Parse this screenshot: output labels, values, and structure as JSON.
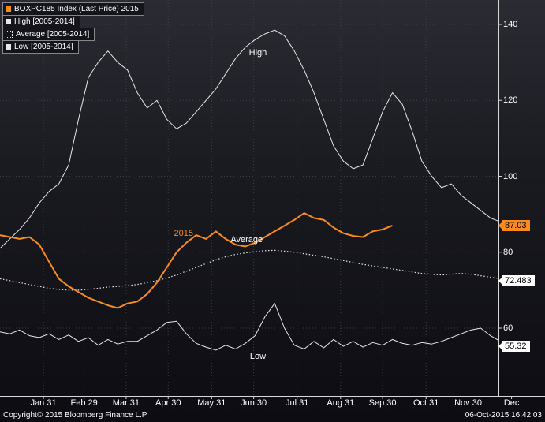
{
  "legend": {
    "items": [
      {
        "label": "BOXPC185 Index (Last Price) 2015",
        "swatch": "#fb8b1e",
        "swatch_style": "solid"
      },
      {
        "label": "High [2005-2014]",
        "swatch": "#e8e8e8",
        "swatch_style": "solid"
      },
      {
        "label": "Average [2005-2014]",
        "swatch": "#e8e8e8",
        "swatch_style": "dotted"
      },
      {
        "label": "Low [2005-2014]",
        "swatch": "#e8e8e8",
        "swatch_style": "solid"
      }
    ]
  },
  "footer": {
    "left": "Copyright© 2015 Bloomberg Finance L.P.",
    "right": "06-Oct-2015 16:42:03"
  },
  "chart_data": {
    "type": "line",
    "title": "",
    "xlabel": "",
    "ylabel": "",
    "grid": true,
    "legend_position": "top-left",
    "colors": {
      "accent_orange": "#fb8b1e",
      "line_white": "#e8e8e8",
      "background": "#15151c"
    },
    "x_axis": {
      "unit": "day-of-year",
      "range": [
        0,
        365
      ],
      "tick_labels": [
        {
          "label": "Jan 31",
          "day": 31
        },
        {
          "label": "Feb 29",
          "day": 60
        },
        {
          "label": "Mar 31",
          "day": 90
        },
        {
          "label": "Apr 30",
          "day": 120
        },
        {
          "label": "May 31",
          "day": 151
        },
        {
          "label": "Jun 30",
          "day": 181
        },
        {
          "label": "Jul 31",
          "day": 212
        },
        {
          "label": "Aug 31",
          "day": 243
        },
        {
          "label": "Sep 30",
          "day": 273
        },
        {
          "label": "Oct 31",
          "day": 304
        },
        {
          "label": "Nov 30",
          "day": 334
        },
        {
          "label": "Dec",
          "day": 365
        }
      ]
    },
    "y_axis": {
      "visible_range": [
        42,
        146
      ],
      "ticks": [
        140,
        120,
        100,
        80,
        60
      ]
    },
    "last_price_badges": [
      {
        "label": "87.03",
        "value": 87.03,
        "bg": "#fb8b1e",
        "fg": "#000000"
      },
      {
        "label": "72.483",
        "value": 72.483,
        "bg": "#ffffff",
        "fg": "#000000"
      },
      {
        "label": "55.32",
        "value": 55.32,
        "bg": "#ffffff",
        "fg": "#000000"
      }
    ],
    "annotations": [
      {
        "text": "High",
        "day": 184,
        "value": 132.5,
        "color": "#ffffff"
      },
      {
        "text": "Average",
        "day": 176,
        "value": 83.3,
        "color": "#ffffff"
      },
      {
        "text": "Low",
        "day": 184,
        "value": 52.5,
        "color": "#ffffff"
      },
      {
        "text": "2015",
        "day": 131,
        "value": 85.0,
        "color": "#fb8b1e"
      }
    ],
    "series": [
      {
        "name": "BOXPC185 Index (Last Price) 2015",
        "color": "#fb8b1e",
        "style": "solid",
        "width": 2,
        "start_day": 0,
        "interval_days": 7,
        "values": [
          84.5,
          84,
          83.5,
          84,
          82,
          77.5,
          73,
          71,
          69.5,
          68,
          67,
          66,
          65.3,
          66.5,
          67,
          69,
          72,
          76,
          80,
          82.5,
          84.5,
          83.5,
          85.5,
          83.5,
          82,
          81.5,
          82.5,
          84,
          85.5,
          87,
          88.5,
          90.3,
          89,
          88.5,
          86.5,
          85,
          84.3,
          84,
          85.5,
          86,
          87.03
        ]
      },
      {
        "name": "High [2005-2014]",
        "color": "#e8e8e8",
        "style": "solid",
        "width": 1,
        "start_day": 0,
        "interval_days": 7,
        "values": [
          81,
          83.5,
          86,
          89,
          93,
          96,
          98,
          103,
          115,
          126,
          130,
          133,
          130,
          128,
          122,
          118,
          120,
          115,
          112.5,
          114,
          117,
          120,
          123,
          127,
          131,
          134,
          136,
          137.5,
          138.5,
          137,
          133,
          128,
          122,
          115,
          108,
          104,
          102,
          103,
          110,
          117,
          122,
          119,
          112,
          104,
          100,
          97,
          98,
          95,
          93,
          91,
          89,
          88,
          87
        ]
      },
      {
        "name": "Average [2005-2014]",
        "color": "#e8e8e8",
        "style": "dotted",
        "width": 1.2,
        "start_day": 0,
        "interval_days": 7,
        "values": [
          73,
          72.5,
          72,
          71.5,
          71,
          70.5,
          70.2,
          70,
          70,
          70.2,
          70.5,
          70.8,
          71,
          71.2,
          71.5,
          72,
          72.5,
          73.2,
          74,
          75,
          76,
          77,
          78,
          78.8,
          79.4,
          79.8,
          80.2,
          80.4,
          80.5,
          80.3,
          80,
          79.6,
          79.2,
          78.8,
          78.3,
          77.8,
          77.3,
          76.8,
          76.4,
          76,
          75.6,
          75.2,
          74.8,
          74.4,
          74.2,
          74,
          74.2,
          74.4,
          74.2,
          73.8,
          73.4,
          73,
          72.483
        ]
      },
      {
        "name": "Low [2005-2014]",
        "color": "#e8e8e8",
        "style": "solid",
        "width": 1,
        "start_day": 0,
        "interval_days": 7,
        "values": [
          59,
          58.5,
          59.5,
          58,
          57.5,
          58.5,
          57,
          58.2,
          56.5,
          57.5,
          55.5,
          57,
          55.8,
          56.5,
          56.5,
          58,
          59.5,
          61.5,
          61.8,
          58.5,
          56,
          55,
          54.2,
          55.5,
          54.5,
          56,
          58,
          63,
          66.5,
          60,
          55.5,
          54.5,
          56.5,
          54.8,
          57,
          55.2,
          56.5,
          55,
          56.2,
          55.5,
          57,
          56,
          55.5,
          56.2,
          55.8,
          56.5,
          57.5,
          58.5,
          59.5,
          60,
          58,
          56.5,
          55.32
        ]
      }
    ]
  }
}
